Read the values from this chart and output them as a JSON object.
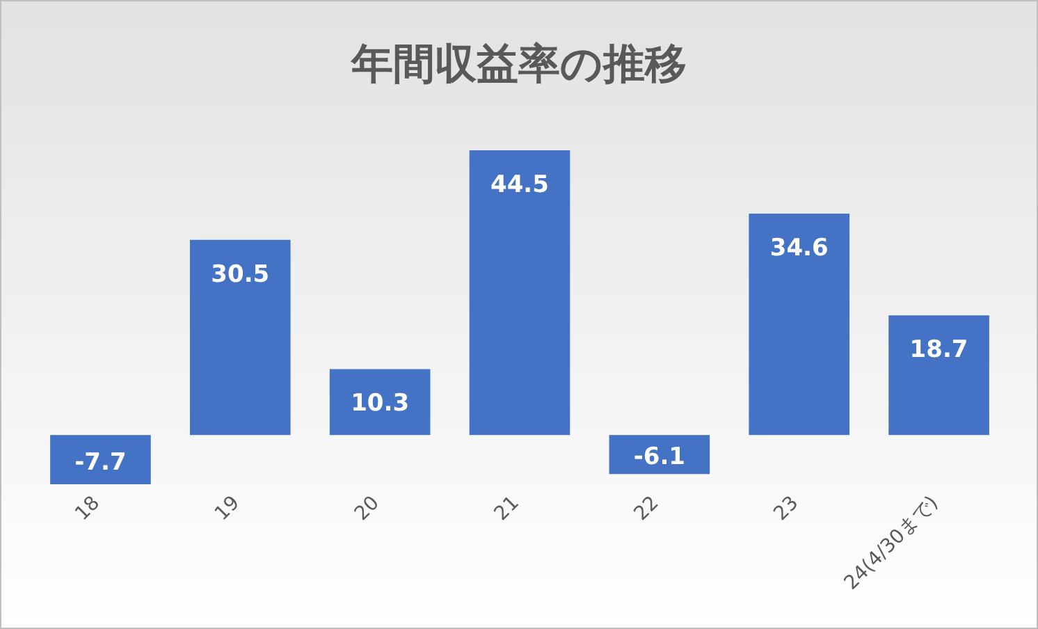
{
  "chart_data": {
    "type": "bar",
    "title": "年間収益率の推移",
    "categories": [
      "18",
      "19",
      "20",
      "21",
      "22",
      "23",
      "24(4/30まで)"
    ],
    "values": [
      -7.7,
      30.5,
      10.3,
      44.5,
      -6.1,
      34.6,
      18.7
    ],
    "color": "#4472c4",
    "data_labels": true
  }
}
